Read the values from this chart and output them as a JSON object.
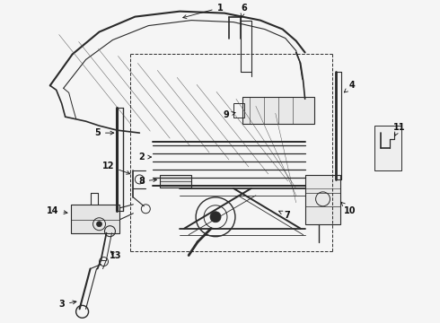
{
  "bg_color": "#f5f5f5",
  "line_color": "#2a2a2a",
  "label_color": "#111111",
  "fig_width": 4.9,
  "fig_height": 3.6,
  "dpi": 100
}
